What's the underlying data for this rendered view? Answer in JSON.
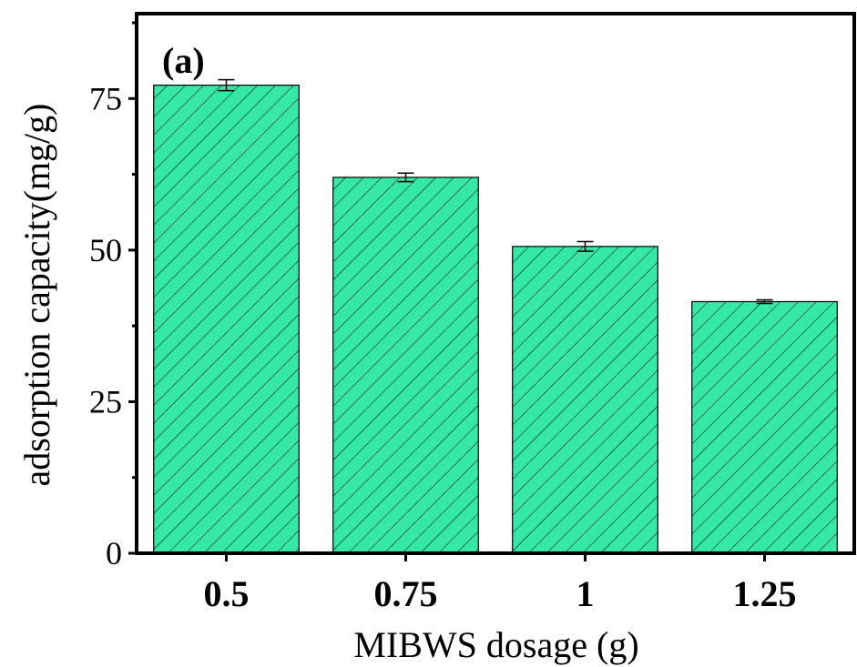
{
  "chart_data": {
    "type": "bar",
    "panel_label": "(a)",
    "categories": [
      "0.5",
      "0.75",
      "1",
      "1.25"
    ],
    "values": [
      77.2,
      62.0,
      50.6,
      41.5
    ],
    "errors": [
      0.9,
      0.7,
      0.8,
      0.3
    ],
    "xlabel": "MIBWS dosage (g)",
    "ylabel": "adsorption capacity(mg/g)",
    "ylim": [
      0,
      89
    ],
    "yticks": [
      0,
      25,
      50,
      75
    ],
    "bar_color": "#36e8a8",
    "hatch": "diagonal",
    "grid": false
  }
}
